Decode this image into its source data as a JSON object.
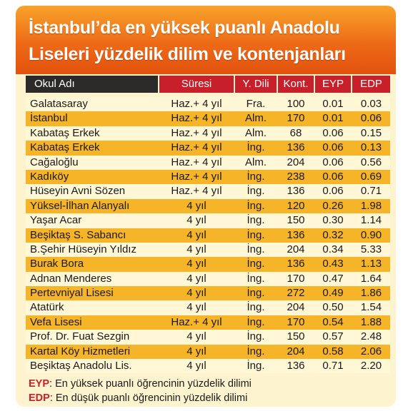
{
  "title": {
    "line1": "İstanbul’da en yüksek puanlı Anadolu",
    "line2": "Liseleri yüzdelik dilim ve kontenjanları"
  },
  "table": {
    "headers": {
      "name": "Okul Adı",
      "duration": "Süresi",
      "language": "Y. Dili",
      "quota": "Kont.",
      "eyp": "EYP",
      "edp": "EDP"
    },
    "rows": [
      {
        "name": "Galatasaray",
        "duration": "Haz.+ 4 yıl",
        "language": "Fra.",
        "quota": "100",
        "eyp": "0.01",
        "edp": "0.03"
      },
      {
        "name": "İstanbul",
        "duration": "Haz.+ 4 yıl",
        "language": "Alm.",
        "quota": "170",
        "eyp": "0.01",
        "edp": "0.06"
      },
      {
        "name": "Kabataş Erkek",
        "duration": "Haz.+ 4 yıl",
        "language": "Alm.",
        "quota": "68",
        "eyp": "0.06",
        "edp": "0.15"
      },
      {
        "name": "Kabataş Erkek",
        "duration": "Haz.+ 4 yıl",
        "language": "İng.",
        "quota": "136",
        "eyp": "0.06",
        "edp": "0.13"
      },
      {
        "name": "Cağaloğlu",
        "duration": "Haz.+ 4 yıl",
        "language": "Alm.",
        "quota": "204",
        "eyp": "0.06",
        "edp": "0.56"
      },
      {
        "name": "Kadıköy",
        "duration": "Haz.+ 4 yıl",
        "language": "İng.",
        "quota": "238",
        "eyp": "0.06",
        "edp": "0.69"
      },
      {
        "name": "Hüseyin Avni Sözen",
        "duration": "Haz.+ 4 yıl",
        "language": "İng.",
        "quota": "136",
        "eyp": "0.06",
        "edp": "0.71"
      },
      {
        "name": "Yüksel-İlhan Alanyalı",
        "duration": "4 yıl",
        "language": "İng.",
        "quota": "120",
        "eyp": "0.26",
        "edp": "1.98"
      },
      {
        "name": "Yaşar Acar",
        "duration": "4 yıl",
        "language": "İng.",
        "quota": "150",
        "eyp": "0.30",
        "edp": "1.14"
      },
      {
        "name": "Beşiktaş S. Sabancı",
        "duration": "4 yıl",
        "language": "İng.",
        "quota": "136",
        "eyp": "0.32",
        "edp": "0.90"
      },
      {
        "name": "B.Şehir Hüseyin Yıldız",
        "duration": "4 yıl",
        "language": "İng.",
        "quota": "204",
        "eyp": "0.34",
        "edp": "5.33"
      },
      {
        "name": "Burak Bora",
        "duration": "4 yıl",
        "language": "İng.",
        "quota": "136",
        "eyp": "0.43",
        "edp": "1.13"
      },
      {
        "name": "Adnan Menderes",
        "duration": "4 yıl",
        "language": "İng.",
        "quota": "170",
        "eyp": "0.47",
        "edp": "1.64"
      },
      {
        "name": "Pertevniyal Lisesi",
        "duration": "4 yıl",
        "language": "İng.",
        "quota": "272",
        "eyp": "0.49",
        "edp": "1.86"
      },
      {
        "name": "Atatürk",
        "duration": "4 yıl",
        "language": "İng.",
        "quota": "204",
        "eyp": "0.50",
        "edp": "1.54"
      },
      {
        "name": "Vefa Lisesi",
        "duration": "Haz.+ 4 yıl",
        "language": "İng.",
        "quota": "170",
        "eyp": "0.54",
        "edp": "1.88"
      },
      {
        "name": "Prof. Dr. Fuat Sezgin",
        "duration": "4 yıl",
        "language": "İng.",
        "quota": "150",
        "eyp": "0.57",
        "edp": "2.48"
      },
      {
        "name": "Kartal Köy Hizmetleri",
        "duration": "4 yıl",
        "language": "İng.",
        "quota": "204",
        "eyp": "0.58",
        "edp": "2.06"
      },
      {
        "name": "Beşiktaş Anadolu Lis.",
        "duration": "4 yıl",
        "language": "İng.",
        "quota": "136",
        "eyp": "0.71",
        "edp": "2.20"
      }
    ]
  },
  "notes": [
    {
      "key": "EYP",
      "text": ": En yüksek puanlı öğrencinin yüzdelik dilimi"
    },
    {
      "key": "EDP",
      "text": ": En düşük puanlı öğrencinin yüzdelik dilimi"
    }
  ],
  "colors": {
    "title_orange": "#ee6a17",
    "header_red": "#c8202a",
    "header_dark": "#2c2a28",
    "row_light": "#fff7d6",
    "row_gold": "#f6b428"
  }
}
